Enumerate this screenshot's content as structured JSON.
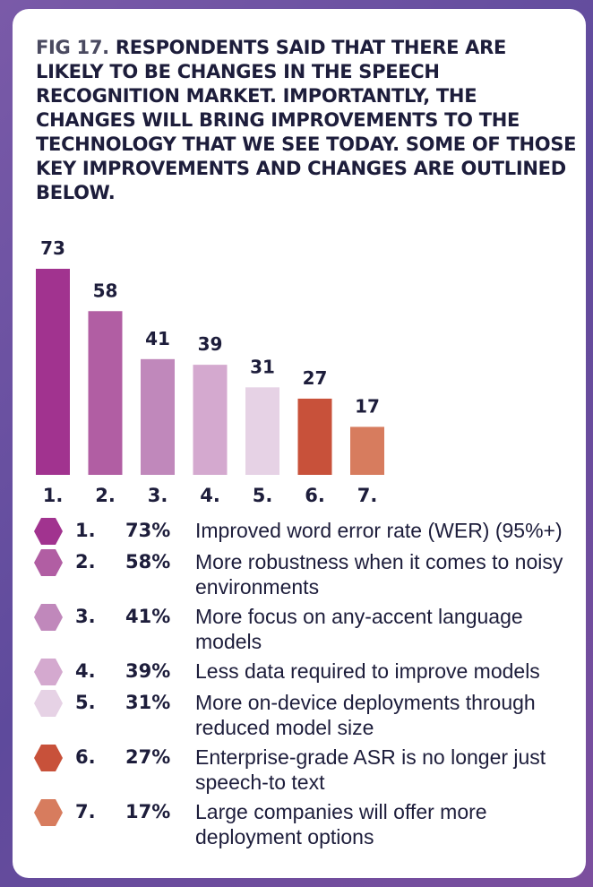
{
  "title": {
    "fig": "FIG 17.",
    "text": "RESPONDENTS SAID THAT THERE ARE LIKELY TO BE CHANGES IN THE SPEECH RECOGNITION MARKET. IMPORTANTLY, THE CHANGES WILL BRING IMPROVEMENTS TO THE TECHNOLOGY THAT WE SEE TODAY. SOME OF THOSE KEY IMPROVEMENTS AND CHANGES ARE OUTLINED BELOW."
  },
  "chart_data": {
    "type": "bar",
    "categories": [
      "1.",
      "2.",
      "3.",
      "4.",
      "5.",
      "6.",
      "7."
    ],
    "values": [
      73,
      58,
      41,
      39,
      31,
      27,
      17
    ],
    "colors": [
      "#a1338f",
      "#b15ea3",
      "#c088bb",
      "#d4a9cf",
      "#e6d2e5",
      "#c8513a",
      "#d77c5e"
    ],
    "ylim": [
      0,
      73
    ]
  },
  "legend": [
    {
      "num": "1.",
      "pct": "73%",
      "desc": "Improved word error rate (WER) (95%+)",
      "color": "#a1338f"
    },
    {
      "num": "2.",
      "pct": "58%",
      "desc": "More robustness when it comes to noisy environments",
      "color": "#b15ea3"
    },
    {
      "num": "3.",
      "pct": "41%",
      "desc": "More focus on any-accent language models",
      "color": "#c088bb"
    },
    {
      "num": "4.",
      "pct": "39%",
      "desc": "Less data required to improve models",
      "color": "#d4a9cf"
    },
    {
      "num": "5.",
      "pct": "31%",
      "desc": "More on-device deployments through reduced model size",
      "color": "#e6d2e5"
    },
    {
      "num": "6.",
      "pct": "27%",
      "desc": "Enterprise-grade ASR is no longer just speech-to text",
      "color": "#c8513a"
    },
    {
      "num": "7.",
      "pct": "17%",
      "desc": "Large companies will offer more deployment options",
      "color": "#d77c5e"
    }
  ]
}
